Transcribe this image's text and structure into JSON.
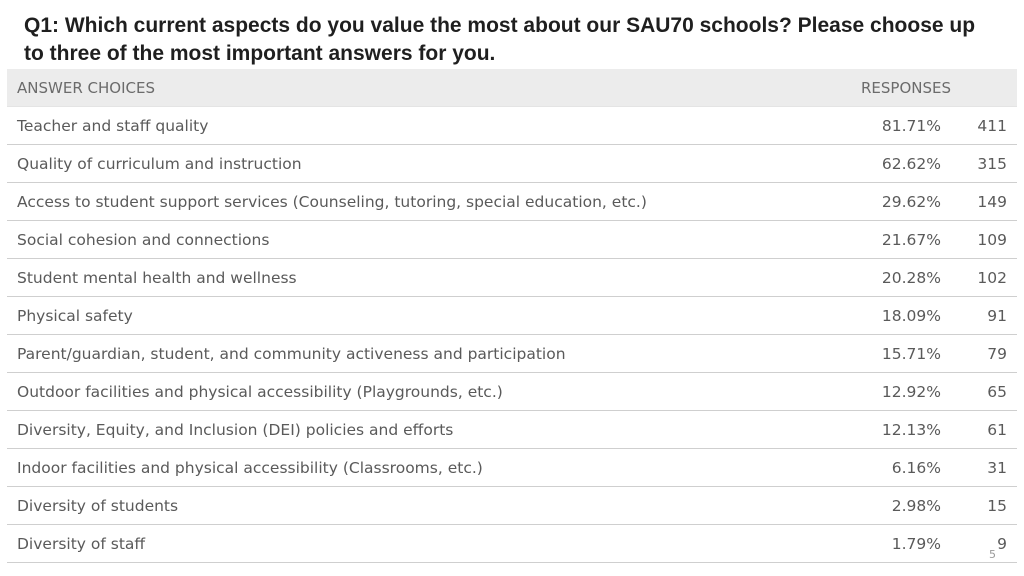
{
  "chart_data": {
    "type": "table",
    "title": "Q1: Which current aspects do you value the most about our SAU70 schools? Please choose up to three of the most important answers for you.",
    "columns": [
      "ANSWER CHOICES",
      "RESPONSES"
    ],
    "rows": [
      {
        "label": "Teacher and staff quality",
        "percent": "81.71%",
        "count": "411"
      },
      {
        "label": "Quality of curriculum and instruction",
        "percent": "62.62%",
        "count": "315"
      },
      {
        "label": "Access to student support services (Counseling, tutoring, special education, etc.)",
        "percent": "29.62%",
        "count": "149"
      },
      {
        "label": "Social cohesion and connections",
        "percent": "21.67%",
        "count": "109"
      },
      {
        "label": "Student mental health and wellness",
        "percent": "20.28%",
        "count": "102"
      },
      {
        "label": "Physical safety",
        "percent": "18.09%",
        "count": "91"
      },
      {
        "label": "Parent/guardian, student, and community activeness and participation",
        "percent": "15.71%",
        "count": "79"
      },
      {
        "label": "Outdoor facilities and physical accessibility (Playgrounds, etc.)",
        "percent": "12.92%",
        "count": "65"
      },
      {
        "label": "Diversity, Equity, and Inclusion (DEI) policies and efforts",
        "percent": "12.13%",
        "count": "61"
      },
      {
        "label": "Indoor facilities and physical accessibility (Classrooms, etc.)",
        "percent": "6.16%",
        "count": "31"
      },
      {
        "label": "Diversity of students",
        "percent": "2.98%",
        "count": "15"
      },
      {
        "label": "Diversity of staff",
        "percent": "1.79%",
        "count": "9"
      }
    ]
  },
  "page_number": "5"
}
